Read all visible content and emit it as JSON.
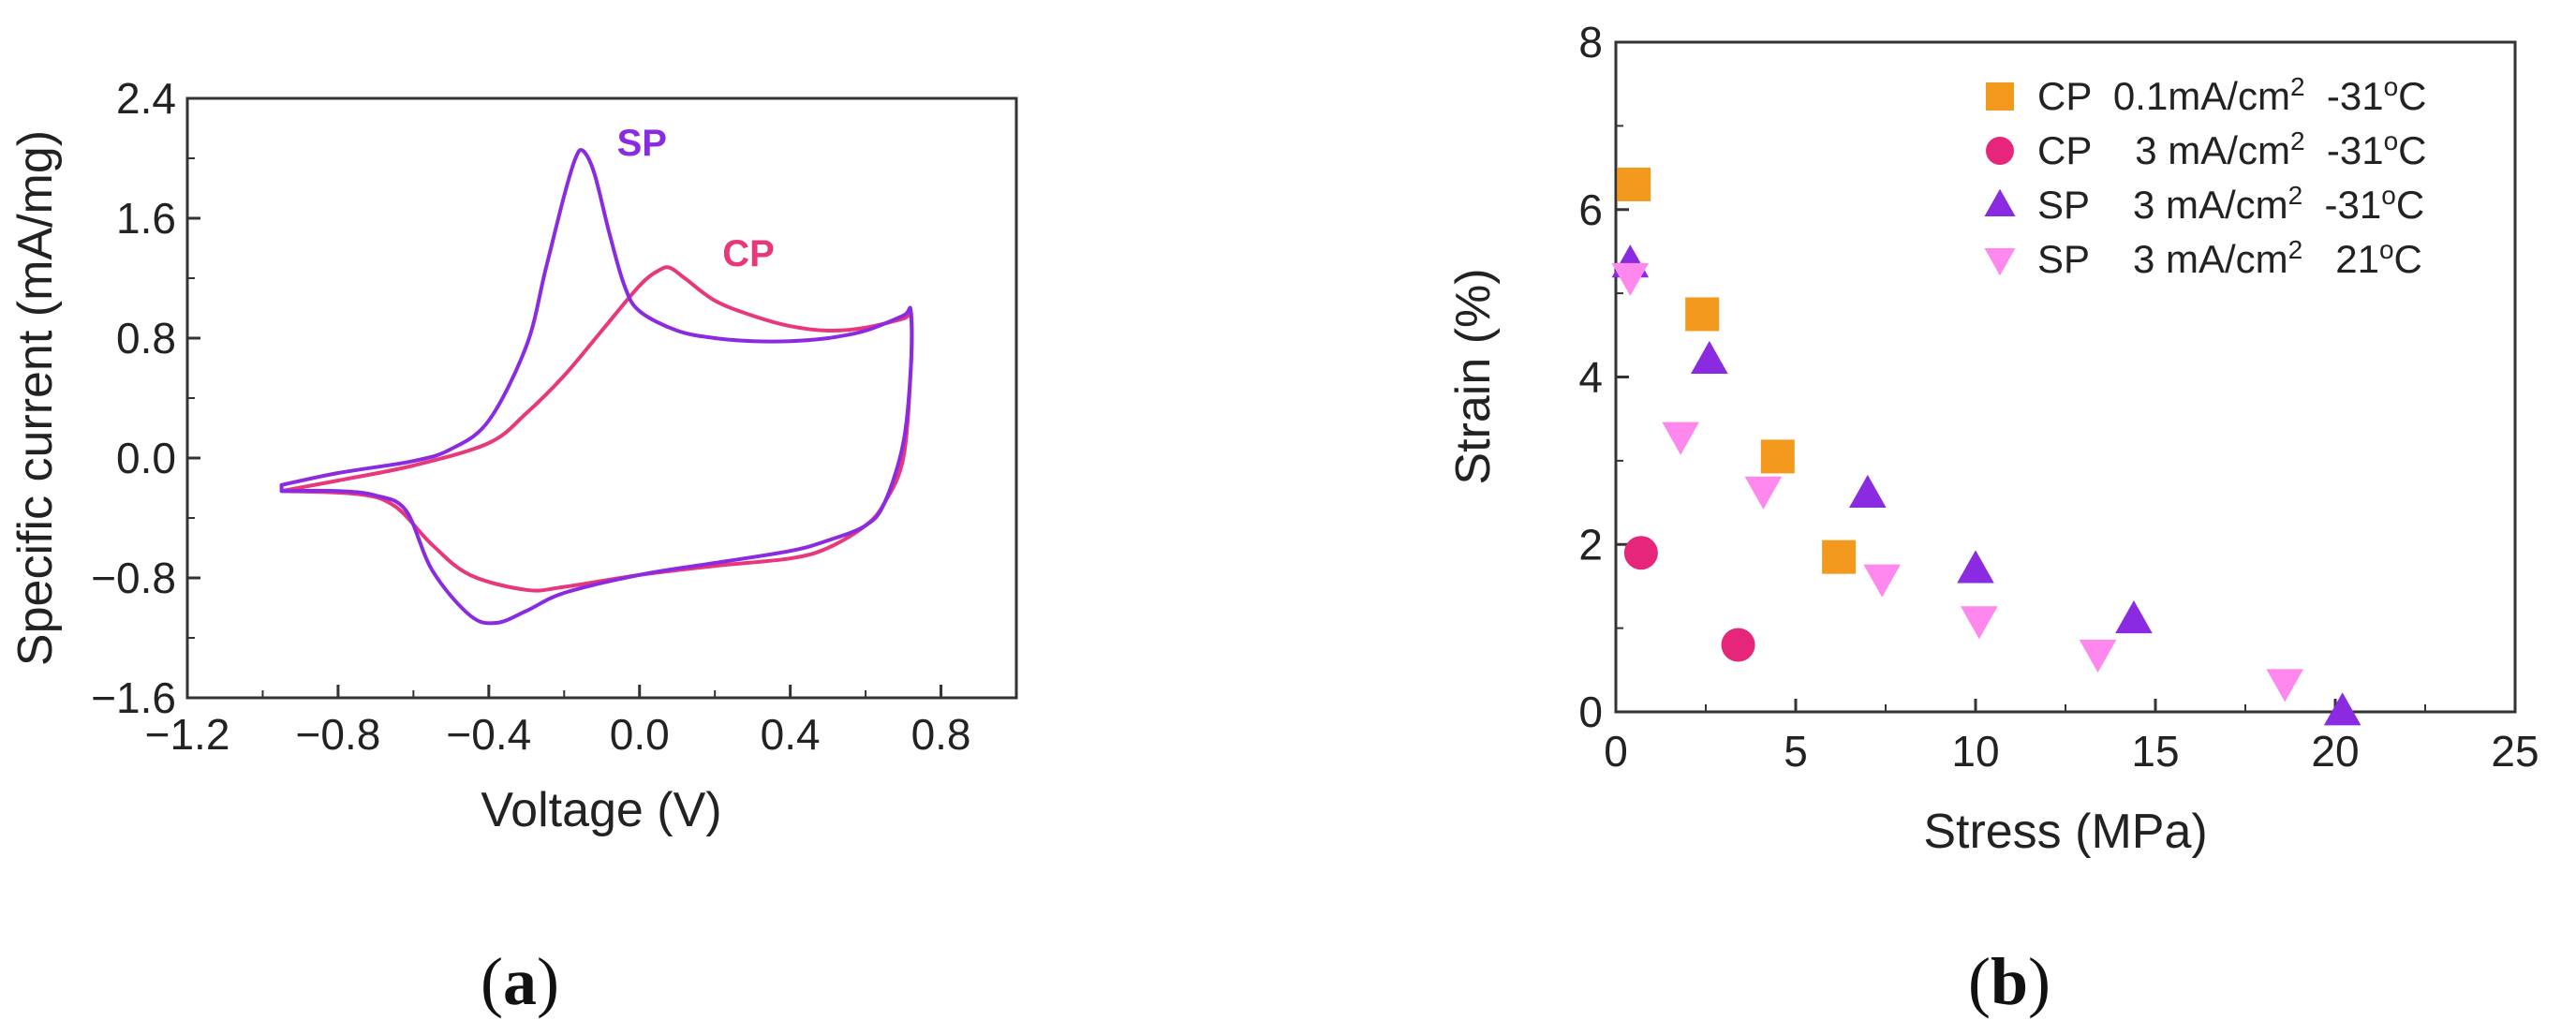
{
  "chart_data": [
    {
      "type": "line",
      "panel": "(a)",
      "panel_letter": "a",
      "xlabel": "Voltage (V)",
      "ylabel": "Specific current (mA/mg)",
      "xlim": [
        -1.2,
        1.0
      ],
      "ylim": [
        -1.6,
        2.4
      ],
      "x_ticks": [
        -1.2,
        -0.8,
        -0.4,
        0.0,
        0.4,
        0.8
      ],
      "x_tick_labels": [
        "−1.2",
        "−0.8",
        "−0.4",
        "0.0",
        "0.4",
        "0.8"
      ],
      "y_ticks": [
        -1.6,
        -0.8,
        0.0,
        0.8,
        1.6,
        2.4
      ],
      "y_tick_labels": [
        "−1.6",
        "−0.8",
        "0.0",
        "0.8",
        "1.6",
        "2.4"
      ],
      "series": [
        {
          "name": "SP",
          "color": "#8a2be2",
          "x": [
            -0.95,
            -0.8,
            -0.6,
            -0.5,
            -0.4,
            -0.3,
            -0.25,
            -0.2,
            -0.17,
            -0.15,
            -0.12,
            -0.08,
            -0.04,
            0.0,
            0.1,
            0.2,
            0.3,
            0.4,
            0.5,
            0.6,
            0.7,
            0.72,
            0.72,
            0.7,
            0.65,
            0.6,
            0.5,
            0.4,
            0.2,
            0.0,
            -0.2,
            -0.3,
            -0.38,
            -0.45,
            -0.55,
            -0.62,
            -0.7,
            -0.8,
            -0.95
          ],
          "y": [
            -0.18,
            -0.1,
            -0.02,
            0.06,
            0.25,
            0.75,
            1.25,
            1.75,
            2.0,
            2.05,
            1.9,
            1.5,
            1.15,
            0.98,
            0.85,
            0.8,
            0.78,
            0.78,
            0.8,
            0.85,
            0.95,
            0.98,
            0.6,
            0.1,
            -0.3,
            -0.45,
            -0.55,
            -0.62,
            -0.7,
            -0.78,
            -0.9,
            -1.02,
            -1.1,
            -1.05,
            -0.75,
            -0.35,
            -0.25,
            -0.22,
            -0.22
          ]
        },
        {
          "name": "CP",
          "color": "#e8377a",
          "x": [
            -0.95,
            -0.8,
            -0.6,
            -0.4,
            -0.3,
            -0.2,
            -0.1,
            0.0,
            0.05,
            0.08,
            0.12,
            0.2,
            0.3,
            0.4,
            0.5,
            0.6,
            0.7,
            0.72,
            0.72,
            0.7,
            0.65,
            0.6,
            0.5,
            0.4,
            0.2,
            0.0,
            -0.2,
            -0.3,
            -0.45,
            -0.55,
            -0.65,
            -0.75,
            -0.95
          ],
          "y": [
            -0.22,
            -0.15,
            -0.05,
            0.1,
            0.3,
            0.55,
            0.85,
            1.15,
            1.25,
            1.27,
            1.2,
            1.05,
            0.95,
            0.88,
            0.85,
            0.87,
            0.93,
            0.95,
            0.6,
            0.0,
            -0.3,
            -0.45,
            -0.6,
            -0.67,
            -0.72,
            -0.78,
            -0.86,
            -0.88,
            -0.78,
            -0.58,
            -0.32,
            -0.24,
            -0.22
          ]
        }
      ],
      "annotations": [
        {
          "text": "SP",
          "x": -0.06,
          "y": 2.02,
          "color": "#8a2be2"
        },
        {
          "text": "CP",
          "x": 0.22,
          "y": 1.28,
          "color": "#e8377a"
        }
      ]
    },
    {
      "type": "scatter",
      "panel": "(b)",
      "panel_letter": "b",
      "xlabel": "Stress (MPa)",
      "ylabel": "Strain (%)",
      "xlim": [
        0,
        25
      ],
      "ylim": [
        0,
        8
      ],
      "x_ticks": [
        0,
        5,
        10,
        15,
        20,
        25
      ],
      "x_tick_labels": [
        "0",
        "5",
        "10",
        "15",
        "20",
        "25"
      ],
      "y_ticks": [
        0,
        2,
        4,
        6,
        8
      ],
      "y_tick_labels": [
        "0",
        "2",
        "4",
        "6",
        "8"
      ],
      "legend_position": "top-right",
      "series": [
        {
          "name": "CP 0.1mA/cm2 -31oC",
          "legend": {
            "prefix": "CP  0.1mA/cm",
            "sup1": "2",
            "mid": "  -31",
            "sup2": "o",
            "suffix": "C"
          },
          "marker": "square",
          "color": "#f39a1e",
          "x": [
            0.5,
            2.4,
            4.5,
            6.2
          ],
          "y": [
            6.3,
            4.75,
            3.05,
            1.85
          ]
        },
        {
          "name": "CP 3 mA/cm2 -31oC",
          "legend": {
            "prefix": "CP    3 mA/cm",
            "sup1": "2",
            "mid": "  -31",
            "sup2": "o",
            "suffix": "C"
          },
          "marker": "circle",
          "color": "#e6267a",
          "x": [
            0.7,
            3.4
          ],
          "y": [
            1.9,
            0.8
          ]
        },
        {
          "name": "SP 3 mA/cm2 -31oC",
          "legend": {
            "prefix": "SP    3 mA/cm",
            "sup1": "2",
            "mid": "  -31",
            "sup2": "o",
            "suffix": "C"
          },
          "marker": "triangle-up",
          "color": "#8a2be2",
          "x": [
            0.4,
            2.6,
            7.0,
            10.0,
            14.4,
            20.2
          ],
          "y": [
            5.35,
            4.2,
            2.6,
            1.7,
            1.1,
            0.0
          ]
        },
        {
          "name": "SP 3 mA/cm2 21oC",
          "legend": {
            "prefix": "SP    3 mA/cm",
            "sup1": "2",
            "mid": "   21",
            "sup2": "o",
            "suffix": "C"
          },
          "marker": "triangle-down",
          "color": "#ff88ee",
          "x": [
            0.4,
            1.8,
            4.1,
            7.4,
            10.1,
            13.4,
            18.6
          ],
          "y": [
            5.2,
            3.3,
            2.65,
            1.6,
            1.1,
            0.7,
            0.35
          ]
        }
      ]
    }
  ]
}
